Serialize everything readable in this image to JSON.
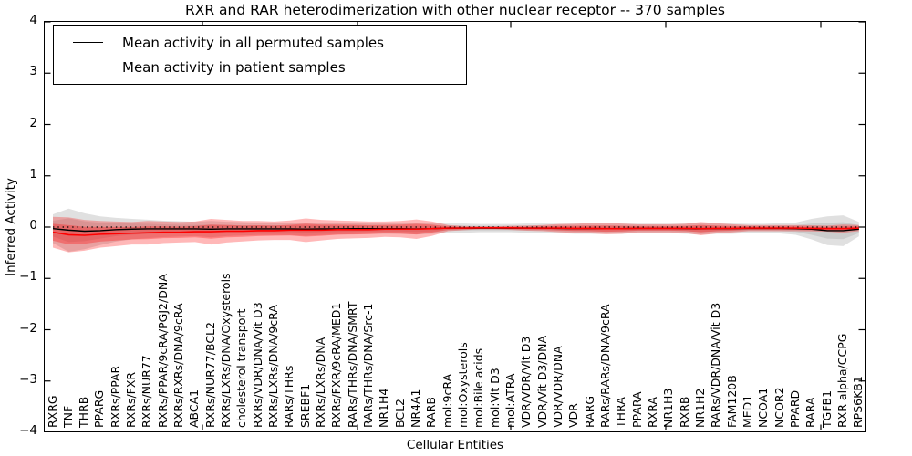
{
  "chart_data": {
    "type": "line",
    "title": "RXR and RAR heterodimerization with other nuclear receptor -- 370 samples",
    "xlabel": "Cellular Entities",
    "ylabel": "Inferred Activity",
    "ylim": [
      -4,
      4
    ],
    "yticks": [
      4,
      3,
      2,
      1,
      0,
      -1,
      -2,
      -3,
      -4
    ],
    "grid": false,
    "legend_position": "upper left",
    "reference_line": {
      "y": 0,
      "style": "dotted",
      "color": "#000000"
    },
    "categories": [
      "RXRG",
      "TNF",
      "THRB",
      "PPARG",
      "RXRs/PPAR",
      "RXRs/FXR",
      "RXRs/NUR77",
      "RXRs/PPAR/9cRA/PGJ2/DNA",
      "RXRs/RXRs/DNA/9cRA",
      "ABCA1",
      "RXRs/NUR77/BCL2",
      "RXRs/LXRs/DNA/Oxysterols",
      "cholesterol transport",
      "RXRs/VDR/DNA/Vit D3",
      "RXRs/LXRs/DNA/9cRA",
      "RARs/THRs",
      "SREBF1",
      "RXRs/LXRs/DNA",
      "RXRs/FXR/9cRA/MED1",
      "RARs/THRs/DNA/SMRT",
      "RARs/THRs/DNA/Src-1",
      "NR1H4",
      "BCL2",
      "NR4A1",
      "RARB",
      "mol:9cRA",
      "mol:Oxysterols",
      "mol:Bile acids",
      "mol:Vit D3",
      "mol:ATRA",
      "VDR/VDR/Vit D3",
      "VDR/Vit D3/DNA",
      "VDR/VDR/DNA",
      "VDR",
      "RARG",
      "RARs/RARs/DNA/9cRA",
      "THRA",
      "PPARA",
      "RXRA",
      "NR1H3",
      "RXRB",
      "NR1H2",
      "RARs/VDR/DNA/Vit D3",
      "FAM120B",
      "MED1",
      "NCOA1",
      "NCOR2",
      "PPARD",
      "RARA",
      "TGFB1",
      "RXR alpha/CCPG",
      "RPS6KB1"
    ],
    "series": [
      {
        "name": "Mean activity in all permuted samples",
        "color": "#000000",
        "band_color": "#999999",
        "values": [
          -0.03,
          -0.06,
          -0.08,
          -0.07,
          -0.05,
          -0.04,
          -0.035,
          -0.035,
          -0.035,
          -0.035,
          -0.04,
          -0.035,
          -0.035,
          -0.035,
          -0.035,
          -0.035,
          -0.04,
          -0.035,
          -0.035,
          -0.03,
          -0.03,
          -0.03,
          -0.03,
          -0.035,
          -0.03,
          -0.02,
          -0.02,
          -0.02,
          -0.02,
          -0.02,
          -0.02,
          -0.02,
          -0.025,
          -0.03,
          -0.03,
          -0.03,
          -0.03,
          -0.025,
          -0.025,
          -0.025,
          -0.03,
          -0.035,
          -0.03,
          -0.03,
          -0.025,
          -0.025,
          -0.025,
          -0.03,
          -0.04,
          -0.07,
          -0.07,
          -0.04
        ],
        "std": [
          0.28,
          0.42,
          0.35,
          0.28,
          0.23,
          0.2,
          0.18,
          0.16,
          0.15,
          0.14,
          0.16,
          0.14,
          0.13,
          0.12,
          0.12,
          0.12,
          0.13,
          0.12,
          0.11,
          0.11,
          0.1,
          0.1,
          0.1,
          0.11,
          0.1,
          0.09,
          0.09,
          0.08,
          0.08,
          0.08,
          0.09,
          0.09,
          0.09,
          0.1,
          0.1,
          0.1,
          0.1,
          0.09,
          0.09,
          0.09,
          0.1,
          0.11,
          0.1,
          0.1,
          0.09,
          0.09,
          0.1,
          0.12,
          0.2,
          0.28,
          0.3,
          0.14
        ]
      },
      {
        "name": "Mean activity in patient samples",
        "color": "#ff0000",
        "band_color": "#ff0000",
        "values": [
          -0.1,
          -0.15,
          -0.16,
          -0.14,
          -0.13,
          -0.12,
          -0.11,
          -0.1,
          -0.1,
          -0.09,
          -0.09,
          -0.08,
          -0.08,
          -0.07,
          -0.07,
          -0.06,
          -0.06,
          -0.06,
          -0.05,
          -0.05,
          -0.05,
          -0.04,
          -0.04,
          -0.04,
          -0.03,
          -0.02,
          -0.02,
          -0.015,
          -0.015,
          -0.015,
          -0.02,
          -0.02,
          -0.02,
          -0.025,
          -0.025,
          -0.03,
          -0.03,
          -0.025,
          -0.025,
          -0.025,
          -0.025,
          -0.03,
          -0.025,
          -0.025,
          -0.02,
          -0.02,
          -0.02,
          -0.02,
          -0.025,
          -0.03,
          -0.03,
          -0.02
        ],
        "std": [
          0.3,
          0.34,
          0.3,
          0.26,
          0.24,
          0.22,
          0.23,
          0.21,
          0.2,
          0.2,
          0.25,
          0.22,
          0.2,
          0.19,
          0.18,
          0.19,
          0.23,
          0.2,
          0.18,
          0.17,
          0.16,
          0.15,
          0.16,
          0.19,
          0.14,
          0.06,
          0.04,
          0.03,
          0.03,
          0.04,
          0.05,
          0.06,
          0.08,
          0.09,
          0.1,
          0.11,
          0.1,
          0.08,
          0.08,
          0.08,
          0.09,
          0.13,
          0.1,
          0.08,
          0.06,
          0.06,
          0.06,
          0.06,
          0.06,
          0.06,
          0.08,
          0.06
        ]
      }
    ]
  }
}
